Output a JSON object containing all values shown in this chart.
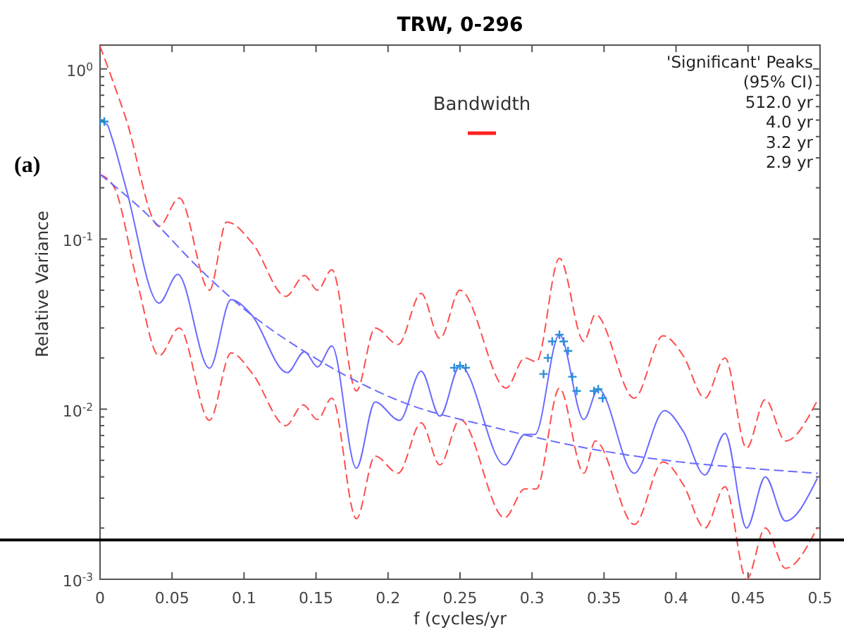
{
  "chart_data": {
    "type": "line",
    "title": "TRW, 0-296",
    "xlabel": "f (cycles/yr",
    "ylabel": "Relative Variance",
    "annotations": [
      "(a)",
      "Bandwidth",
      "'Significant' Peaks",
      "(95% CI)",
      "512.0 yr",
      "4.0 yr",
      "3.2 yr",
      "2.9 yr"
    ],
    "xlim": [
      0,
      0.5
    ],
    "xticks": [
      0,
      0.05,
      0.1,
      0.15,
      0.2,
      0.25,
      0.3,
      0.35,
      0.4,
      0.45,
      0.5
    ],
    "ylim": [
      0.001,
      1.38
    ],
    "log": "y",
    "grid": false,
    "yticks": [
      {
        "value": 0.001,
        "label": "10$^{-3}$"
      },
      {
        "value": 0.002,
        "label": null
      },
      {
        "value": 0.003,
        "label": null
      },
      {
        "value": 0.004,
        "label": null
      },
      {
        "value": 0.005,
        "label": null
      },
      {
        "value": 0.006,
        "label": null
      },
      {
        "value": 0.007,
        "label": null
      },
      {
        "value": 0.008,
        "label": null
      },
      {
        "value": 0.009,
        "label": null
      },
      {
        "value": 0.01,
        "label": "10$^{-2}$"
      },
      {
        "value": 0.02,
        "label": null
      },
      {
        "value": 0.03,
        "label": null
      },
      {
        "value": 0.04,
        "label": null
      },
      {
        "value": 0.05,
        "label": null
      },
      {
        "value": 0.06,
        "label": null
      },
      {
        "value": 0.07,
        "label": null
      },
      {
        "value": 0.08,
        "label": null
      },
      {
        "value": 0.09,
        "label": null
      },
      {
        "value": 0.1,
        "label": "10$^{-1}$"
      },
      {
        "value": 0.2,
        "label": null
      },
      {
        "value": 0.3,
        "label": null
      },
      {
        "value": 0.4,
        "label": null
      },
      {
        "value": 0.5,
        "label": null
      },
      {
        "value": 0.6,
        "label": null
      },
      {
        "value": 0.7,
        "label": null
      },
      {
        "value": 0.8,
        "label": null
      },
      {
        "value": 0.9,
        "label": null
      },
      {
        "value": 1,
        "label": "10$^{0}$"
      }
    ],
    "ref_lines": [
      {
        "axis": "y",
        "value": 0.0017,
        "color": "#000000",
        "line_style": "solid"
      }
    ],
    "series": [
      {
        "type": "line",
        "color": "#ff4d4d",
        "line_style": "dashed",
        "x": [
          0,
          0.018,
          0.041,
          0.055,
          0.076,
          0.088,
          0.106,
          0.129,
          0.142,
          0.151,
          0.161,
          0.178,
          0.191,
          0.207,
          0.223,
          0.236,
          0.25,
          0.282,
          0.295,
          0.303,
          0.319,
          0.336,
          0.344,
          0.371,
          0.391,
          0.405,
          0.42,
          0.434,
          0.449,
          0.462,
          0.476,
          0.498
        ],
        "values": [
          1.36,
          0.51,
          0.119,
          0.174,
          0.05,
          0.126,
          0.094,
          0.046,
          0.061,
          0.05,
          0.066,
          0.0128,
          0.03,
          0.024,
          0.048,
          0.026,
          0.05,
          0.0133,
          0.02,
          0.019,
          0.077,
          0.025,
          0.036,
          0.0116,
          0.027,
          0.0206,
          0.0116,
          0.02,
          0.0059,
          0.0114,
          0.0065,
          0.0112
        ]
      },
      {
        "type": "line",
        "color": "#ff4d4d",
        "line_style": "dashed",
        "x": [
          0,
          0.01,
          0.026,
          0.041,
          0.055,
          0.076,
          0.091,
          0.106,
          0.129,
          0.141,
          0.151,
          0.161,
          0.178,
          0.191,
          0.207,
          0.223,
          0.236,
          0.25,
          0.281,
          0.295,
          0.303,
          0.319,
          0.336,
          0.344,
          0.371,
          0.391,
          0.405,
          0.42,
          0.434,
          0.449,
          0.462,
          0.476,
          0.498
        ],
        "values": [
          0.24,
          0.2,
          0.055,
          0.0206,
          0.03,
          0.0086,
          0.0214,
          0.0161,
          0.008,
          0.0106,
          0.0087,
          0.0116,
          0.00227,
          0.0053,
          0.0042,
          0.0083,
          0.0047,
          0.0087,
          0.0023,
          0.0034,
          0.0034,
          0.0133,
          0.0042,
          0.0065,
          0.0021,
          0.0049,
          0.0036,
          0.002,
          0.0035,
          0.001,
          0.002,
          0.00116,
          0.002
        ]
      },
      {
        "type": "line",
        "color": "#6b6bff",
        "line_style": "dashed",
        "x": [
          0,
          0.028,
          0.069,
          0.091,
          0.155,
          0.21,
          0.274,
          0.338,
          0.402,
          0.45,
          0.498
        ],
        "values": [
          0.24,
          0.152,
          0.067,
          0.045,
          0.0187,
          0.011,
          0.0078,
          0.0059,
          0.0049,
          0.0045,
          0.0042
        ]
      },
      {
        "type": "line",
        "color": "#6b6bff",
        "line_style": "solid",
        "x": [
          0,
          0.005,
          0.008,
          0.018,
          0.041,
          0.054,
          0.076,
          0.091,
          0.105,
          0.13,
          0.142,
          0.151,
          0.161,
          0.178,
          0.191,
          0.208,
          0.223,
          0.236,
          0.25,
          0.281,
          0.295,
          0.302,
          0.319,
          0.336,
          0.346,
          0.371,
          0.392,
          0.405,
          0.42,
          0.434,
          0.449,
          0.462,
          0.476,
          0.498
        ],
        "values": [
          0.49,
          0.47,
          0.4,
          0.2,
          0.042,
          0.062,
          0.0174,
          0.044,
          0.036,
          0.0164,
          0.0218,
          0.0177,
          0.0235,
          0.0045,
          0.011,
          0.0086,
          0.0167,
          0.0091,
          0.018,
          0.0047,
          0.0071,
          0.0071,
          0.0274,
          0.0087,
          0.0131,
          0.0042,
          0.0098,
          0.0074,
          0.0041,
          0.0072,
          0.002,
          0.004,
          0.0022,
          0.0039
        ]
      },
      {
        "type": "scatter",
        "color": "#2a8fd6",
        "marker": "cross",
        "x": [
          0,
          0.003,
          0.246,
          0.25,
          0.254,
          0.308,
          0.311,
          0.314,
          0.319,
          0.322,
          0.325,
          0.328,
          0.331,
          0.343,
          0.346,
          0.349
        ],
        "values": [
          0.49,
          0.49,
          0.0175,
          0.018,
          0.0175,
          0.0161,
          0.02,
          0.025,
          0.0274,
          0.025,
          0.022,
          0.0155,
          0.0128,
          0.0128,
          0.0131,
          0.0116
        ]
      }
    ]
  }
}
